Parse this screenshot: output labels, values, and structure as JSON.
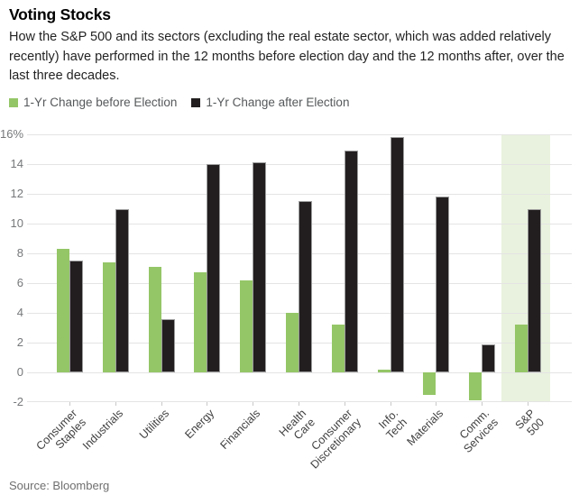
{
  "header": {
    "title": "Voting Stocks",
    "subtitle": "How the S&P 500 and its sectors (excluding the real estate sector, which was added relatively\nrecently) have performed in the 12 months before election day and the 12 months after, over the\nlast three decades."
  },
  "legend": [
    {
      "label": "1-Yr Change before Election",
      "color": "#94c667"
    },
    {
      "label": "1-Yr Change after Election",
      "color": "#221e1f"
    }
  ],
  "chart_data": {
    "type": "bar",
    "title": "Voting Stocks",
    "categories": [
      "Consumer\nStaples",
      "Industrials",
      "Utilities",
      "Energy",
      "Financials",
      "Health\nCare",
      "Consumer\nDiscretionary",
      "Info.\nTech",
      "Materials",
      "Comm.\nServices",
      "S&P\n500"
    ],
    "series": [
      {
        "name": "1-Yr Change before Election",
        "color": "#94c667",
        "values": [
          8.3,
          7.4,
          7.1,
          6.7,
          6.2,
          4.0,
          3.2,
          0.2,
          -1.5,
          -1.9,
          3.2
        ]
      },
      {
        "name": "1-Yr Change after Election",
        "color": "#221e1f",
        "values": [
          7.5,
          11.0,
          3.6,
          14.0,
          14.1,
          11.5,
          14.9,
          15.8,
          11.8,
          1.9,
          11.0
        ]
      }
    ],
    "ylabel": "",
    "xlabel": "",
    "ylim": [
      -2,
      16
    ],
    "ytick_step": 2,
    "ytick_top_label": "16%",
    "grid": true,
    "legend_position": "top",
    "highlight_category": "S&P\n500",
    "highlight_color": "#e9f2de",
    "gridline_color": "#e4e4e4"
  },
  "source": "Source: Bloomberg"
}
